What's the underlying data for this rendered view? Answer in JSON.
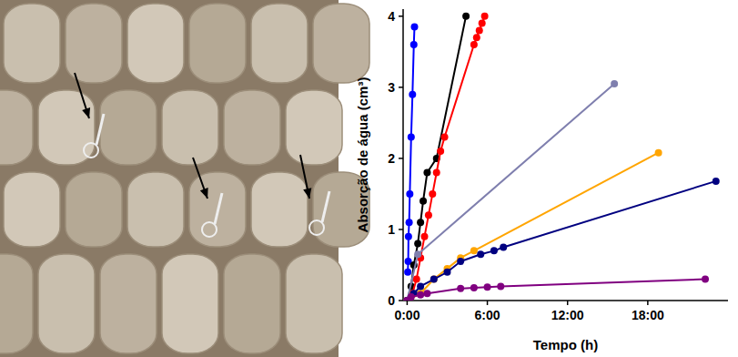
{
  "chart_data": {
    "type": "line",
    "x_label": "Tempo (h)",
    "y_label": "Absorção de água (cm³)",
    "xlim": [
      -0.3,
      24
    ],
    "xticks": [
      {
        "value": 0,
        "label": "0:00"
      },
      {
        "value": 6,
        "label": "6:00"
      },
      {
        "value": 12,
        "label": "12:00"
      },
      {
        "value": 18,
        "label": "18:00"
      }
    ],
    "ylim": [
      0,
      4.1
    ],
    "yticks": [
      0,
      1,
      2,
      3,
      4
    ],
    "grid": false,
    "marker": "circle",
    "series": [
      {
        "color": "#0000ff",
        "x": [
          0.05,
          0.08,
          0.1,
          0.15,
          0.2,
          0.3,
          0.4,
          0.5,
          0.55
        ],
        "values": [
          0.4,
          0.55,
          0.9,
          1.1,
          1.5,
          2.3,
          2.9,
          3.6,
          3.85
        ]
      },
      {
        "color": "#000000",
        "x": [
          0,
          0.3,
          0.5,
          0.8,
          1.0,
          1.2,
          1.5,
          2.2,
          4.4
        ],
        "values": [
          0,
          0.2,
          0.5,
          0.8,
          1.1,
          1.4,
          1.8,
          2.0,
          4.0
        ]
      },
      {
        "color": "#ff0000",
        "x": [
          0,
          0.4,
          0.7,
          1.0,
          1.3,
          1.6,
          1.9,
          2.2,
          2.5,
          2.8,
          5.0,
          5.2,
          5.4,
          5.6,
          5.8
        ],
        "values": [
          0,
          0.1,
          0.3,
          0.6,
          0.9,
          1.2,
          1.5,
          1.8,
          2.1,
          2.3,
          3.6,
          3.7,
          3.8,
          3.9,
          4.0
        ]
      },
      {
        "color": "#7f7fae",
        "x": [
          0,
          0.8,
          15.5
        ],
        "values": [
          0,
          0.65,
          3.05
        ]
      },
      {
        "color": "#ffa500",
        "x": [
          0,
          1,
          2,
          3,
          4,
          5,
          18.8
        ],
        "values": [
          0,
          0.1,
          0.3,
          0.45,
          0.6,
          0.7,
          2.08
        ]
      },
      {
        "color": "#000080",
        "x": [
          0,
          0.5,
          1,
          2,
          3,
          4,
          5.5,
          6.5,
          7.2,
          23.1
        ],
        "values": [
          0,
          0.1,
          0.2,
          0.3,
          0.4,
          0.55,
          0.65,
          0.7,
          0.75,
          1.68
        ]
      },
      {
        "color": "#800080",
        "x": [
          0,
          0.3,
          1,
          1.5,
          4,
          5,
          6,
          7,
          22.3
        ],
        "values": [
          0,
          0.05,
          0.08,
          0.1,
          0.17,
          0.18,
          0.19,
          0.2,
          0.3
        ]
      }
    ]
  }
}
